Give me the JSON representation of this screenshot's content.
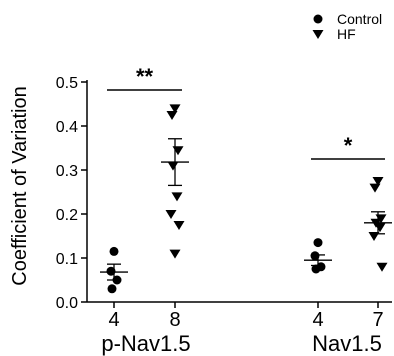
{
  "chart_data": {
    "type": "scatter",
    "title": "",
    "xlabel": "",
    "ylabel": "Coefficient of Variation",
    "ylim": [
      0,
      0.5
    ],
    "yticks": [
      "0.0",
      "0.1",
      "0.2",
      "0.3",
      "0.4",
      "0.5"
    ],
    "legend": {
      "placement": "top-right",
      "entries": [
        {
          "label": "Control",
          "marker": "circle"
        },
        {
          "label": "HF",
          "marker": "triangle-down"
        }
      ]
    },
    "groups": [
      {
        "name": "p-Nav1.5",
        "significance": "**",
        "series": [
          {
            "name": "Control",
            "n_label": "4",
            "values": [
              0.115,
              0.07,
              0.05,
              0.03
            ],
            "mean": 0.068,
            "sem": 0.018
          },
          {
            "name": "HF",
            "n_label": "8",
            "values": [
              0.44,
              0.425,
              0.345,
              0.31,
              0.24,
              0.2,
              0.175,
              0.11
            ],
            "mean": 0.318,
            "sem": 0.053
          }
        ]
      },
      {
        "name": "Nav1.5",
        "significance": "*",
        "series": [
          {
            "name": "Control",
            "n_label": "4",
            "values": [
              0.135,
              0.105,
              0.08,
              0.075
            ],
            "mean": 0.095,
            "sem": 0.012
          },
          {
            "name": "HF",
            "n_label": "7",
            "values": [
              0.275,
              0.26,
              0.19,
              0.18,
              0.17,
              0.15,
              0.08
            ],
            "mean": 0.18,
            "sem": 0.025
          }
        ]
      }
    ]
  }
}
